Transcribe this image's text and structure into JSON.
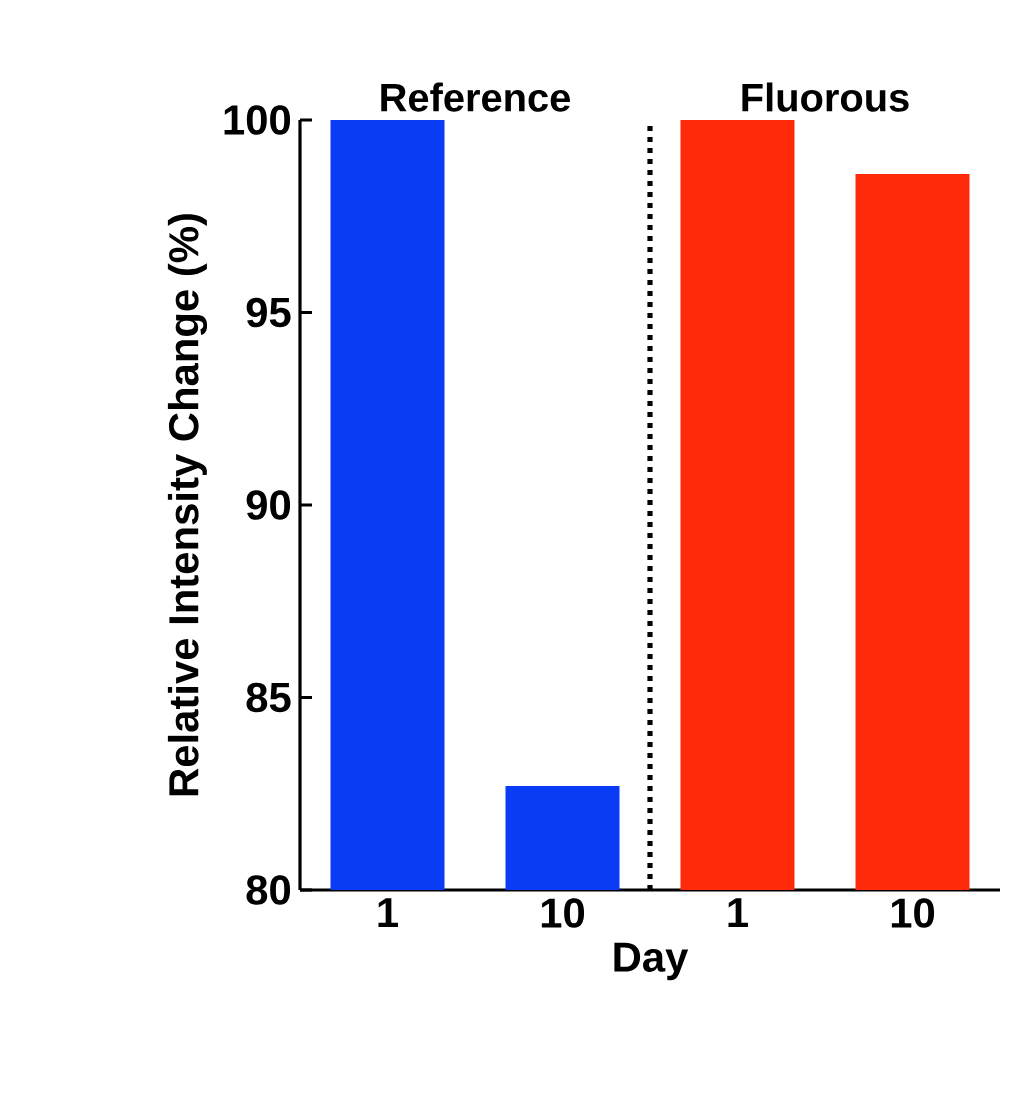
{
  "chart_data": {
    "type": "bar",
    "xlabel": "Day",
    "ylabel": "Relative Intensity Change (%)",
    "categories": [
      "1",
      "10",
      "1",
      "10"
    ],
    "values": [
      100,
      82.7,
      100,
      98.6
    ],
    "colors": [
      "#0a3cf5",
      "#0a3cf5",
      "#ff2a0a",
      "#ff2a0a"
    ],
    "ylim": [
      80,
      100
    ],
    "yticks": [
      80,
      85,
      90,
      95,
      100
    ],
    "annotations": [
      "Reference",
      "Fluorous"
    ],
    "grid": false
  }
}
